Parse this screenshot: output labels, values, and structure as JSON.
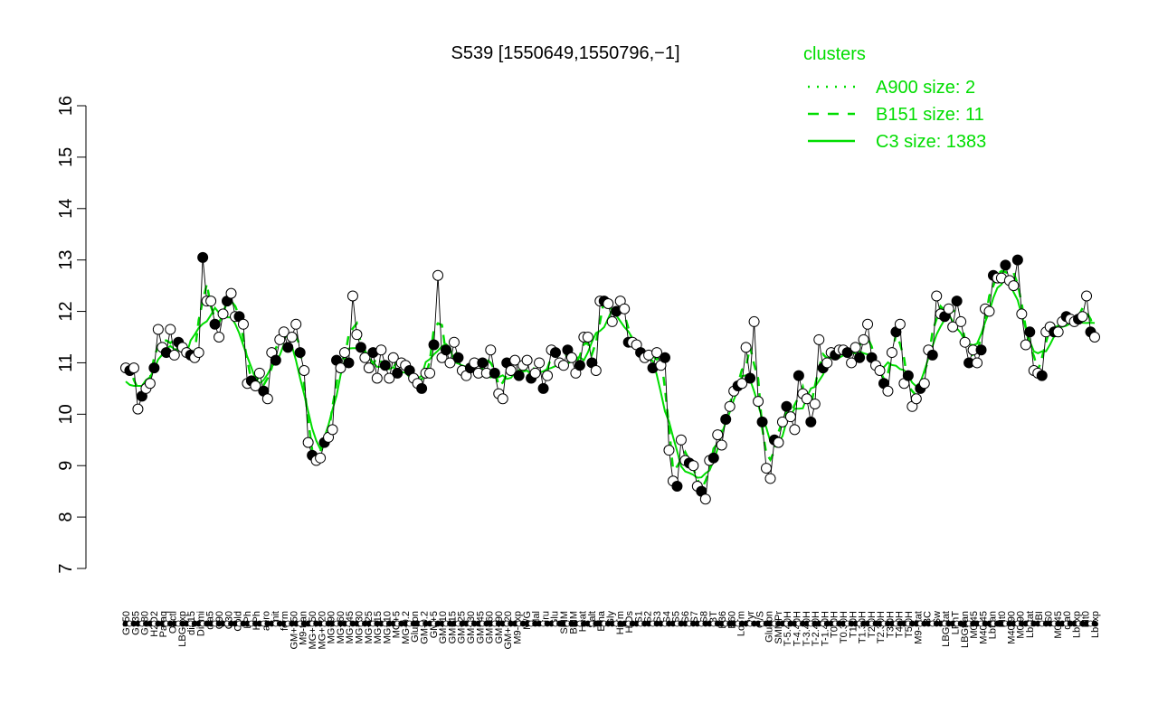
{
  "chart_data": {
    "type": "line",
    "title": "S539 [1550649,1550796,−1]",
    "xlabel": "",
    "ylabel": "",
    "ylim": [
      7,
      16
    ],
    "y_ticks": [
      7,
      8,
      9,
      10,
      11,
      12,
      13,
      14,
      15,
      16
    ],
    "grid": false,
    "legend": {
      "title": "clusters",
      "placement": "top-right",
      "entries": [
        {
          "label": "A900 size: 2",
          "style": "dotted"
        },
        {
          "label": "B151 size: 11",
          "style": "dashed"
        },
        {
          "label": "C3 size: 1383",
          "style": "solid"
        }
      ]
    },
    "colors": {
      "cluster": "#00dd00",
      "point_fill_open": "#ffffff",
      "point_fill_solid": "#000000",
      "axis": "#000000"
    },
    "x_tick_labels": [
      "G150",
      "G135",
      "G180",
      "H2O2",
      "Paraq",
      "Oxctl",
      "LBGexp",
      "dia15",
      "Diami",
      "dia5",
      "C90",
      "C30",
      "Cold",
      "LPh",
      "HPh",
      "aero",
      "nit",
      "ferm",
      "GM+150",
      "M9-tran",
      "MG+150",
      "MG+120",
      "MG+90",
      "MG+60",
      "MG+45",
      "MG+30",
      "MG+25",
      "MG+15",
      "MG+10",
      "MG+5",
      "MG-0.2",
      "Glucon",
      "GM-0.2",
      "GM+5",
      "GM+10",
      "GM+15",
      "GM+25",
      "GM+30",
      "GM+45",
      "GM+60",
      "GM+90",
      "GM+120",
      "M9-exp",
      "M/G",
      "Mal",
      "Fru",
      "Glu",
      "SMM",
      "BMM",
      "Heat",
      "Salt",
      "Etha",
      "Gly",
      "HiTm",
      "HiOs",
      "S1",
      "S2",
      "S3",
      "S4",
      "S5",
      "S6",
      "S7",
      "S8",
      "BT",
      "B36",
      "B60",
      "LoTm",
      "Pyr",
      "G/S",
      "Glucon",
      "SMMPr",
      "T-5.40H",
      "T-4.40H",
      "T-3.40H",
      "T-2.40H",
      "T-1.40H",
      "T0.0H",
      "T0.30H",
      "T1.0H",
      "T1.30H",
      "T2.0H",
      "T2.30H",
      "T3.0H",
      "T4.0H",
      "T5.0H",
      "M9-stat",
      "BC",
      "Sw",
      "LBGstat",
      "LPhT",
      "LBGtran",
      "M0t45",
      "M40t45",
      "Lbtran",
      "Mt0",
      "M40t90",
      "M0t90",
      "Lbstat",
      "BI",
      "S0",
      "M0t45",
      "dia0",
      "Lbexp",
      "Mt0",
      "Lbexp"
    ],
    "series": [
      {
        "style": "points",
        "values": [
          10.9,
          10.85,
          10.9,
          10.1,
          10.35,
          10.5,
          10.6,
          10.9,
          11.65,
          11.3,
          11.2,
          11.65,
          11.15,
          11.4,
          11.3,
          11.2,
          11.15,
          11.1,
          11.2,
          13.05,
          12.2,
          12.2,
          11.75,
          11.5,
          11.95,
          12.2,
          12.35,
          11.9,
          11.9,
          11.75,
          10.6,
          10.65,
          10.55,
          10.8,
          10.45,
          10.3,
          11.2,
          11.05,
          11.45,
          11.6,
          11.3,
          11.5,
          11.75,
          11.2,
          10.85,
          9.45,
          9.2,
          9.1,
          9.15,
          9.45,
          9.55,
          9.7,
          11.05,
          10.9,
          11.2,
          11.0,
          12.3,
          11.55,
          11.3,
          11.1,
          10.9,
          11.2,
          10.7,
          11.25,
          10.95,
          10.7,
          11.1,
          10.8,
          11.0,
          10.95,
          10.85,
          10.7,
          10.6,
          10.5,
          10.8,
          10.8,
          11.35,
          12.7,
          11.1,
          11.25,
          11.0,
          11.4,
          11.1,
          10.85,
          10.75,
          10.9,
          11.0,
          10.8,
          11.0,
          10.8,
          11.25,
          10.8,
          10.4,
          10.3,
          11.0,
          10.85,
          11.05,
          10.75,
          10.95,
          11.05,
          10.7,
          10.8,
          11.0,
          10.5,
          10.75,
          11.25,
          11.2,
          11.0,
          10.95,
          11.25,
          11.1,
          10.8,
          10.95,
          11.5,
          11.5,
          11.0,
          10.85,
          12.2,
          12.2,
          12.15,
          11.8,
          12.0,
          12.2,
          12.05,
          11.4,
          11.4,
          11.35,
          11.2,
          11.1,
          11.15,
          10.9,
          11.2,
          10.95,
          11.1,
          9.3,
          8.7,
          8.6,
          9.5,
          9.1,
          9.05,
          9.0,
          8.6,
          8.5,
          8.35,
          9.1,
          9.15,
          9.6,
          9.4,
          9.9,
          10.15,
          10.45,
          10.55,
          10.6,
          11.3,
          10.7,
          11.8,
          10.25,
          9.85,
          8.95,
          8.75,
          9.5,
          9.45,
          9.85,
          10.15,
          9.95,
          9.7,
          10.75,
          10.4,
          10.3,
          9.85,
          10.2,
          11.45,
          10.9,
          11.0,
          11.2,
          11.15,
          11.25,
          11.25,
          11.2,
          11.0,
          11.3,
          11.1,
          11.45,
          11.75,
          11.1,
          10.95,
          10.85,
          10.6,
          10.45,
          11.2,
          11.6,
          11.75,
          10.6,
          10.75,
          10.15,
          10.3,
          10.5,
          10.6,
          11.25,
          11.15,
          12.3,
          11.95,
          11.9,
          12.05,
          11.7,
          12.2,
          11.8,
          11.4,
          11.0,
          11.25,
          11.0,
          11.25,
          12.05,
          12.0,
          12.7,
          12.65,
          12.65,
          12.9,
          12.6,
          12.5,
          13.0,
          11.95,
          11.35,
          11.6,
          10.85,
          10.8,
          10.75,
          11.6,
          11.7,
          11.6,
          11.6,
          11.8,
          11.9,
          11.85,
          11.8,
          11.85,
          11.9,
          12.3,
          11.6,
          11.5
        ]
      }
    ]
  }
}
